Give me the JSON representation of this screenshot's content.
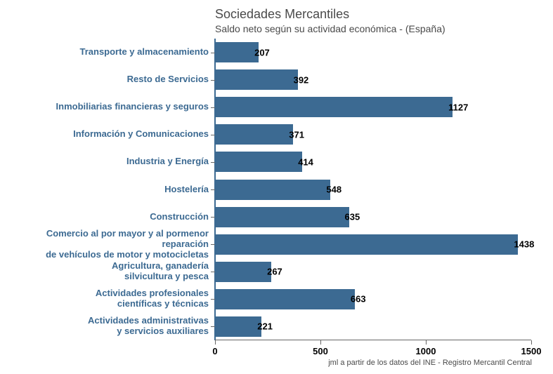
{
  "chart": {
    "type": "bar-horizontal",
    "title": "Sociedades Mercantiles",
    "subtitle": "Saldo neto según su actividad económica - (España)",
    "caption": "jml a partir de los datos del INE - Registro Mercantil Central",
    "bar_color": "#3c6a92",
    "background_color": "#ffffff",
    "title_color": "#4a4a4a",
    "label_color": "#3c6a92",
    "value_color": "#000000",
    "title_fontsize": 18,
    "subtitle_fontsize": 14,
    "label_fontsize": 13,
    "xlim": [
      0,
      1500
    ],
    "xticks": [
      0,
      500,
      1000,
      1500
    ],
    "categories": [
      "Transporte y almacenamiento",
      "Resto de Servicios",
      "Inmobiliarias financieras y seguros",
      "Información y Comunicaciones",
      "Industria y Energía",
      "Hostelería",
      "Construcción",
      "Comercio al por mayor y al pormenor\nreparación\nde vehículos de motor y motocicletas",
      "Agricultura, ganadería\nsilvicultura y pesca",
      "Actividades profesionales\ncientíficas y técnicas",
      "Actividades administrativas\ny servicios auxiliares"
    ],
    "values": [
      207,
      392,
      1127,
      371,
      414,
      548,
      635,
      1438,
      267,
      663,
      221
    ],
    "xtick_labels": [
      "0",
      "500",
      "1000",
      "1500"
    ]
  }
}
